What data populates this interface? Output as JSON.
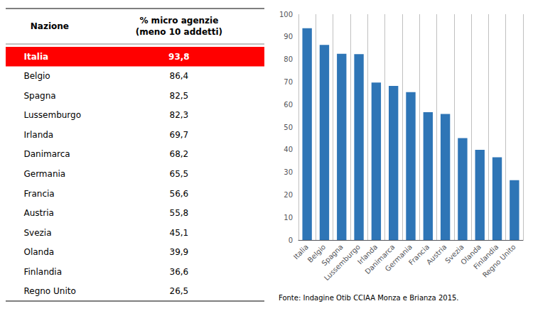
{
  "chart_data": {
    "type": "bar",
    "categories": [
      "Italia",
      "Belgio",
      "Spagna",
      "Lussemburgo",
      "Irlanda",
      "Danimarca",
      "Germania",
      "Francia",
      "Austria",
      "Svezia",
      "Olanda",
      "Finlandia",
      "Regno Unito"
    ],
    "values": [
      93.8,
      86.4,
      82.5,
      82.3,
      69.7,
      68.2,
      65.5,
      56.6,
      55.8,
      45.1,
      39.9,
      36.6,
      26.5
    ],
    "value_labels": [
      "93,8",
      "86,4",
      "82,5",
      "82,3",
      "69,7",
      "68,2",
      "65,5",
      "56,6",
      "55,8",
      "45,1",
      "39,9",
      "36,6",
      "26,5"
    ],
    "table_headers": [
      "Nazione",
      "% micro agenzie\n(meno 10 addetti)"
    ],
    "source": "Fonte: Indagine Otib CCIAA Monza e Brianza 2015.",
    "color": "#2E75B6",
    "highlight_color": "#FF0000",
    "ylim": [
      0,
      100
    ],
    "yticks": [
      0,
      10,
      20,
      30,
      40,
      50,
      60,
      70,
      80,
      90,
      100
    ],
    "grid": true
  }
}
